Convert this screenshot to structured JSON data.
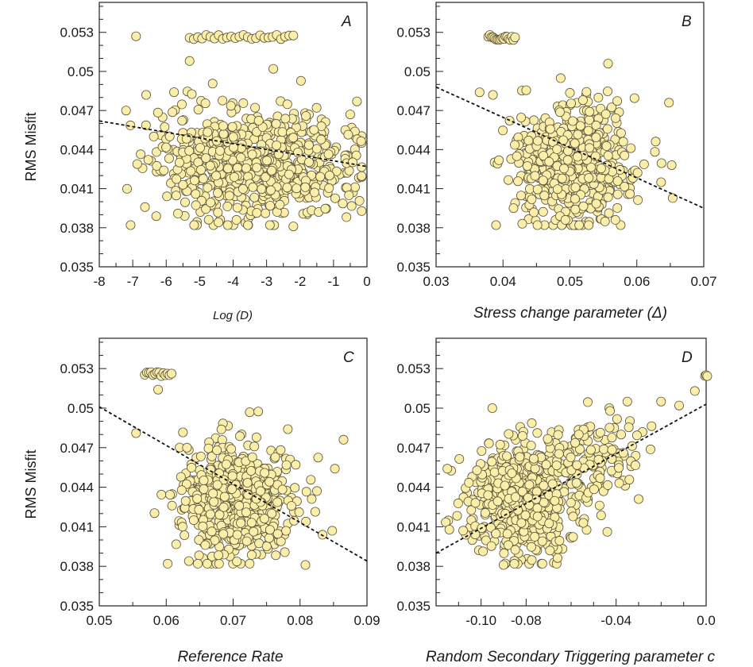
{
  "figure": {
    "point_color": "#fbeea8",
    "point_stroke": "#5a5540",
    "y_ticks": [
      "0.035",
      "0.038",
      "0.041",
      "0.044",
      "0.047",
      "0.05",
      "0.053"
    ],
    "y_tick_values": [
      0.035,
      0.038,
      0.041,
      0.044,
      0.047,
      0.05,
      0.053
    ],
    "ylabel": "RMS Misfit",
    "ylim": [
      0.035,
      0.0553
    ]
  },
  "chart_data": [
    {
      "type": "scatter",
      "panel": "A",
      "xlabel": "Log (D)",
      "xlim": [
        -8,
        0
      ],
      "x_ticks": [
        "-8",
        "-7",
        "-6",
        "-5",
        "-4",
        "-3",
        "-2",
        "-1",
        "0"
      ],
      "x_tick_values": [
        -8,
        -7,
        -6,
        -5,
        -4,
        -3,
        -2,
        -1,
        0
      ],
      "trend": {
        "x": [
          -8,
          0
        ],
        "y": [
          0.0462,
          0.0427
        ]
      },
      "band": {
        "x_min": -5.3,
        "x_max": -2.2,
        "y": 0.0526,
        "n": 26
      },
      "cloud": [
        {
          "cx": -2.5,
          "cy": 0.0428,
          "sx": 1.1,
          "sy": 0.0021,
          "n": 420
        },
        {
          "cx": -4.5,
          "cy": 0.0432,
          "sx": 1.0,
          "sy": 0.0022,
          "n": 260
        }
      ],
      "points": [
        {
          "x": -6.9,
          "y": 0.0527
        },
        {
          "x": -7.2,
          "y": 0.047
        },
        {
          "x": -6.6,
          "y": 0.0482
        },
        {
          "x": -5.3,
          "y": 0.0508
        },
        {
          "x": -2.8,
          "y": 0.0502
        },
        {
          "x": -0.3,
          "y": 0.0477
        },
        {
          "x": -2.2,
          "y": 0.0381
        },
        {
          "x": -3.9,
          "y": 0.0386
        },
        {
          "x": -0.5,
          "y": 0.0467
        }
      ]
    },
    {
      "type": "scatter",
      "panel": "B",
      "xlabel": "Stress change parameter (Δ)",
      "xlim": [
        0.03,
        0.07
      ],
      "x_ticks": [
        "0.03",
        "0.04",
        "0.05",
        "0.06",
        "0.07"
      ],
      "x_tick_values": [
        0.03,
        0.04,
        0.05,
        0.06,
        0.07
      ],
      "trend": {
        "x": [
          0.03,
          0.07
        ],
        "y": [
          0.0488,
          0.0395
        ]
      },
      "band": {
        "x_min": 0.0378,
        "x_max": 0.0418,
        "y": 0.0526,
        "n": 18
      },
      "cloud": [
        {
          "cx": 0.0505,
          "cy": 0.0428,
          "sx": 0.0042,
          "sy": 0.0022,
          "n": 600
        }
      ],
      "points": [
        {
          "x": 0.0365,
          "y": 0.0484
        },
        {
          "x": 0.0557,
          "y": 0.0506
        },
        {
          "x": 0.0648,
          "y": 0.0476
        },
        {
          "x": 0.0652,
          "y": 0.0428
        },
        {
          "x": 0.0568,
          "y": 0.0386
        },
        {
          "x": 0.0385,
          "y": 0.0482
        }
      ]
    },
    {
      "type": "scatter",
      "panel": "C",
      "xlabel": "Reference Rate",
      "xlim": [
        0.05,
        0.09
      ],
      "x_ticks": [
        "0.05",
        "0.06",
        "0.07",
        "0.08",
        "0.09"
      ],
      "x_tick_values": [
        0.05,
        0.06,
        0.07,
        0.08,
        0.09
      ],
      "trend": {
        "x": [
          0.05,
          0.09
        ],
        "y": [
          0.0501,
          0.0384
        ]
      },
      "band": {
        "x_min": 0.0568,
        "x_max": 0.0608,
        "y": 0.0526,
        "n": 14
      },
      "cloud": [
        {
          "cx": 0.0705,
          "cy": 0.0428,
          "sx": 0.0042,
          "sy": 0.0021,
          "n": 620
        }
      ],
      "points": [
        {
          "x": 0.0555,
          "y": 0.0481
        },
        {
          "x": 0.0588,
          "y": 0.0514
        },
        {
          "x": 0.0865,
          "y": 0.0476
        },
        {
          "x": 0.0808,
          "y": 0.0381
        },
        {
          "x": 0.0848,
          "y": 0.0407
        },
        {
          "x": 0.0852,
          "y": 0.0454
        }
      ]
    },
    {
      "type": "scatter",
      "panel": "D",
      "xlabel": "Random Secondary Triggering parameter c",
      "xlim": [
        -0.12,
        0.0
      ],
      "x_ticks": [
        "-0.10",
        "-0.08",
        "-0.04",
        "0.0"
      ],
      "x_tick_values": [
        -0.1,
        -0.08,
        -0.04,
        0.0
      ],
      "x_minor_ticks": [
        -0.12,
        -0.11,
        -0.09,
        -0.07,
        -0.06,
        -0.05,
        -0.03,
        -0.02,
        -0.01
      ],
      "trend": {
        "x": [
          -0.12,
          0.0
        ],
        "y": [
          0.039,
          0.0503
        ]
      },
      "band": {
        "x_min": -0.0005,
        "x_max": 0.0005,
        "y": 0.0526,
        "n": 3
      },
      "cloud": [
        {
          "cx": -0.083,
          "cy": 0.0427,
          "sx": 0.012,
          "sy": 0.0021,
          "n": 540
        },
        {
          "cx": -0.05,
          "cy": 0.0462,
          "sx": 0.012,
          "sy": 0.0018,
          "n": 140
        }
      ],
      "points": [
        {
          "x": -0.115,
          "y": 0.0454
        },
        {
          "x": -0.09,
          "y": 0.0381
        },
        {
          "x": -0.095,
          "y": 0.05
        },
        {
          "x": -0.03,
          "y": 0.0431
        },
        {
          "x": -0.012,
          "y": 0.0502
        },
        {
          "x": -0.005,
          "y": 0.0513
        },
        {
          "x": -0.02,
          "y": 0.0505
        },
        {
          "x": -0.035,
          "y": 0.0505
        }
      ]
    }
  ]
}
